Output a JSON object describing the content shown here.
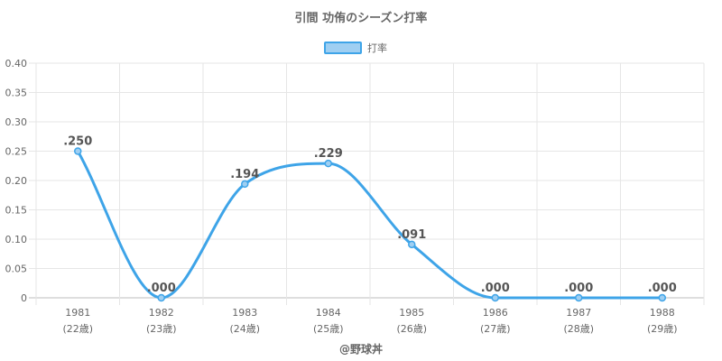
{
  "title": "引間 功侑のシーズン打率",
  "legend": {
    "label": "打率",
    "color": "#3ea4e8",
    "fill": "#9fcff2",
    "position": "top"
  },
  "footer": "@野球丼",
  "chart_data": {
    "type": "line",
    "title": "引間 功侑のシーズン打率",
    "categories": [
      "1981",
      "1982",
      "1983",
      "1984",
      "1985",
      "1986",
      "1987",
      "1988"
    ],
    "category_sublabels": [
      "(22歳)",
      "(23歳)",
      "(24歳)",
      "(25歳)",
      "(26歳)",
      "(27歳)",
      "(28歳)",
      "(29歳)"
    ],
    "series": [
      {
        "name": "打率",
        "values": [
          0.25,
          0.0,
          0.194,
          0.229,
          0.091,
          0.0,
          0.0,
          0.0
        ],
        "labels": [
          ".250",
          ".000",
          ".194",
          ".229",
          ".091",
          ".000",
          ".000",
          ".000"
        ]
      }
    ],
    "ylim": [
      0,
      0.4
    ],
    "yticks": [
      "0",
      "0.05",
      "0.10",
      "0.15",
      "0.20",
      "0.25",
      "0.30",
      "0.35",
      "0.40"
    ],
    "ytick_values": [
      0,
      0.05,
      0.1,
      0.15,
      0.2,
      0.25,
      0.3,
      0.35,
      0.4
    ],
    "grid": true,
    "smooth": true
  }
}
